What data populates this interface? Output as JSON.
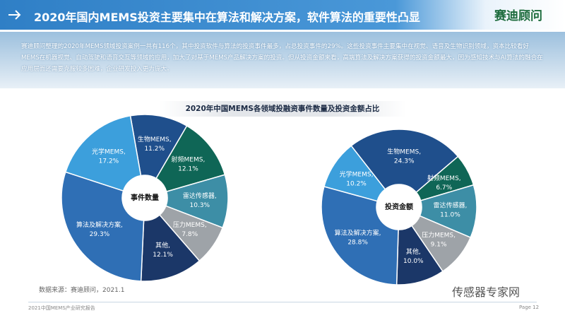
{
  "header": {
    "title": "2020年国内MEMS投资主要集中在算法和解决方案，软件算法的重要性凸显",
    "logo": "赛迪顾问"
  },
  "summary": "赛迪顾问整理的2020年MEMS领域投资案例一共有116个，其中投资软件与算法的投资事件最多，占总投资事件的29%。这些投资事件主要集中在视觉、语音及生物识别领域，资本比较看好MEMS在机器视觉、自动驾驶和语音交互等领域的应用，加大了对基于MEMS产品解决方案的投资。但从投资金额来看，高端算法及解决方案获得的投资金额最大，因为感知技术与AI算法的融合在应用层面还需要克服较多困难，企业研发投入更为庞大。",
  "section_title": "2020年中国MEMS各领域投融资事件数量及投资金额占比",
  "chart_data": [
    {
      "type": "pie",
      "center_label": "事件数量",
      "categories": [
        "生物MEMS,",
        "射频MEMS,",
        "雷达传感器,",
        "压力MEMS,",
        "其他,",
        "算法及解决方案,",
        "光学MEMS,"
      ],
      "values": [
        11.2,
        12.1,
        10.3,
        7.8,
        12.1,
        29.3,
        17.2
      ],
      "value_labels": [
        "11.2%",
        "12.1%",
        "10.3%",
        "7.8%",
        "12.1%",
        "29.3%",
        "17.2%"
      ],
      "colors": [
        "#1f4f8c",
        "#0f6656",
        "#3d8ea6",
        "#9ea3a8",
        "#1b3768",
        "#2f6fb5",
        "#3c9fdc"
      ]
    },
    {
      "type": "pie",
      "center_label": "投资金额",
      "categories": [
        "生物MEMS,",
        "射频MEMS,",
        "雷达传感器,",
        "压力MEMS,",
        "其他,",
        "算法及解决方案,",
        "光学MEMS,"
      ],
      "values": [
        24.3,
        6.7,
        11.0,
        9.1,
        10.0,
        28.8,
        10.2
      ],
      "value_labels": [
        "24.3%",
        "6.7%",
        "11.0%",
        "9.1%",
        "10.0%",
        "28.8%",
        "10.2%"
      ],
      "colors": [
        "#1f4f8c",
        "#0f6656",
        "#3d8ea6",
        "#9ea3a8",
        "#1b3768",
        "#2f6fb5",
        "#3c9fdc"
      ]
    }
  ],
  "source": "数据来源：赛迪顾问，2021.1",
  "footer": {
    "report": "2021中国MEMS产业研究报告",
    "page": "Page 12"
  },
  "watermark": "传感器专家网"
}
